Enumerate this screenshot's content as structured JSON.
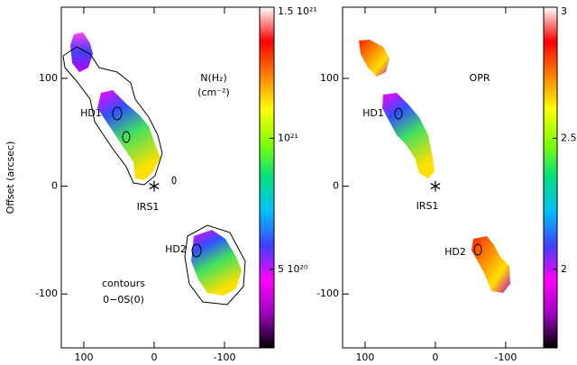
{
  "chart_data": [
    {
      "type": "map",
      "ylabel": "Offset (arcsec)",
      "xlim": [
        132,
        -150
      ],
      "ylim": [
        -150,
        166
      ],
      "xticks": [
        100,
        0,
        -100
      ],
      "yticks": [
        100,
        0,
        -100
      ],
      "source": [
        0,
        0
      ],
      "colorbar": {
        "clim": [
          200000000000000000000,
          1500000000000000000000
        ],
        "ticks": [
          {
            "value": 1500000000000000000000,
            "label": "1.5 10²¹"
          },
          {
            "value": 1000000000000000000000,
            "label": "10²¹"
          },
          {
            "value": 500000000000000000000,
            "label": "5 10²⁰"
          }
        ],
        "colormap": [
          "#000000",
          "#a000c0",
          "#ff00ff",
          "#4040ff",
          "#00c0ff",
          "#00e080",
          "#80ff00",
          "#ffff00",
          "#ff8000",
          "#ff0000",
          "#ffffff"
        ]
      },
      "annotations": [
        "N(H₂)",
        "(cm⁻²)",
        "HD1",
        "IRS1",
        "HD2",
        "contours",
        "0−0S(0)"
      ]
    },
    {
      "type": "map",
      "xlim": [
        132,
        -154
      ],
      "ylim": [
        -150,
        166
      ],
      "xticks": [
        100,
        0,
        -100
      ],
      "yticks": [
        100,
        0,
        -100
      ],
      "source": [
        0,
        0
      ],
      "colorbar": {
        "clim": [
          1.7,
          3
        ],
        "ticks": [
          3,
          2.5,
          2
        ],
        "colormap": [
          "#000000",
          "#a000c0",
          "#ff00ff",
          "#4040ff",
          "#00c0ff",
          "#00e080",
          "#80ff00",
          "#ffff00",
          "#ff8000",
          "#ff0000",
          "#ffffff"
        ]
      },
      "annotations": [
        "OPR",
        "HD1",
        "IRS1",
        "HD2"
      ]
    }
  ]
}
